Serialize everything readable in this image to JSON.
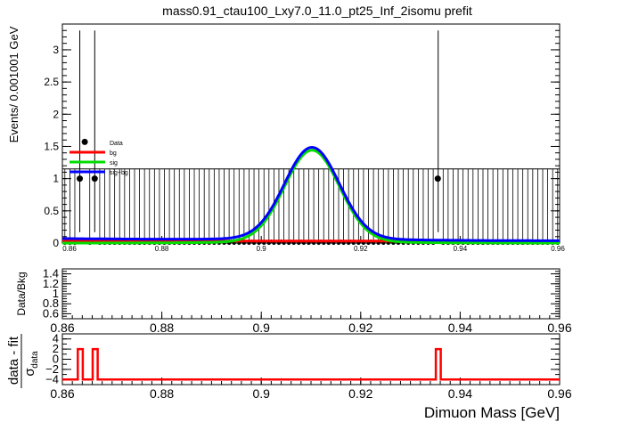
{
  "title": "mass0.91_ctau100_Lxy7.0_11.0_pt25_Inf_2isomu   prefit",
  "main_plot": {
    "ylabel": "Events/ 0.001001 GeV",
    "xlim": [
      0.86,
      0.96
    ],
    "ylim": [
      0,
      3.4
    ],
    "x_ticks": [
      "0.86",
      "0.88",
      "0.9",
      "0.92",
      "0.94",
      "0.96"
    ],
    "y_ticks": [
      "0",
      "0.5",
      "1",
      "1.5",
      "2",
      "2.5",
      "3"
    ],
    "legend": {
      "placement": "left-middle",
      "entries": [
        {
          "label": "Data",
          "color": "#000000",
          "style": "marker"
        },
        {
          "label": "bg",
          "color": "#ff0000",
          "style": "line"
        },
        {
          "label": "sig",
          "color": "#00dd00",
          "style": "line"
        },
        {
          "label": "sig+bg",
          "color": "#0000ff",
          "style": "line"
        }
      ]
    }
  },
  "ratio_plot": {
    "ylabel": "Data/Bkg",
    "ylim": [
      0.5,
      1.5
    ],
    "y_ticks": [
      "0.6",
      "0.8",
      "1",
      "1.2",
      "1.4"
    ],
    "x_ticks": [
      "0.86",
      "0.88",
      "0.9",
      "0.92",
      "0.94",
      "0.96"
    ]
  },
  "pull_plot": {
    "ylabel_numerator": "data - fit",
    "ylabel_denominator": "σ",
    "ylabel_subscript": "data",
    "ylim": [
      -5,
      5
    ],
    "y_ticks": [
      "−4",
      "−2",
      "0",
      "2",
      "4"
    ],
    "x_ticks": [
      "0.86",
      "0.88",
      "0.9",
      "0.92",
      "0.94",
      "0.96"
    ],
    "xlabel": "Dimuon Mass [GeV]"
  },
  "chart_data": {
    "type": "line",
    "x_range": [
      0.86,
      0.96
    ],
    "bin_width": 0.001001,
    "data_points_nonzero": [
      {
        "x": 0.8635,
        "y": 1,
        "err_low": 0.83,
        "err_high": 2.3
      },
      {
        "x": 0.8645,
        "y": 1.57,
        "err_low": 0,
        "err_high": 0
      },
      {
        "x": 0.8665,
        "y": 1,
        "err_low": 0.83,
        "err_high": 2.3
      },
      {
        "x": 0.9355,
        "y": 1,
        "err_low": 0.83,
        "err_high": 2.3
      }
    ],
    "empty_bin_error_high": 1.15,
    "background": {
      "name": "bg",
      "level": 0.03
    },
    "signal": {
      "name": "sig",
      "mean": 0.9102,
      "sigma": 0.0055,
      "peak": 1.45
    },
    "sum": {
      "name": "sig+bg",
      "peak": 1.49
    },
    "pull": {
      "baseline": -4,
      "spikes": [
        {
          "x_start": 0.8631,
          "x_end": 0.8641,
          "value": 2
        },
        {
          "x_start": 0.8661,
          "x_end": 0.8671,
          "value": 2
        },
        {
          "x_start": 0.9351,
          "x_end": 0.9361,
          "value": 2
        }
      ]
    }
  }
}
